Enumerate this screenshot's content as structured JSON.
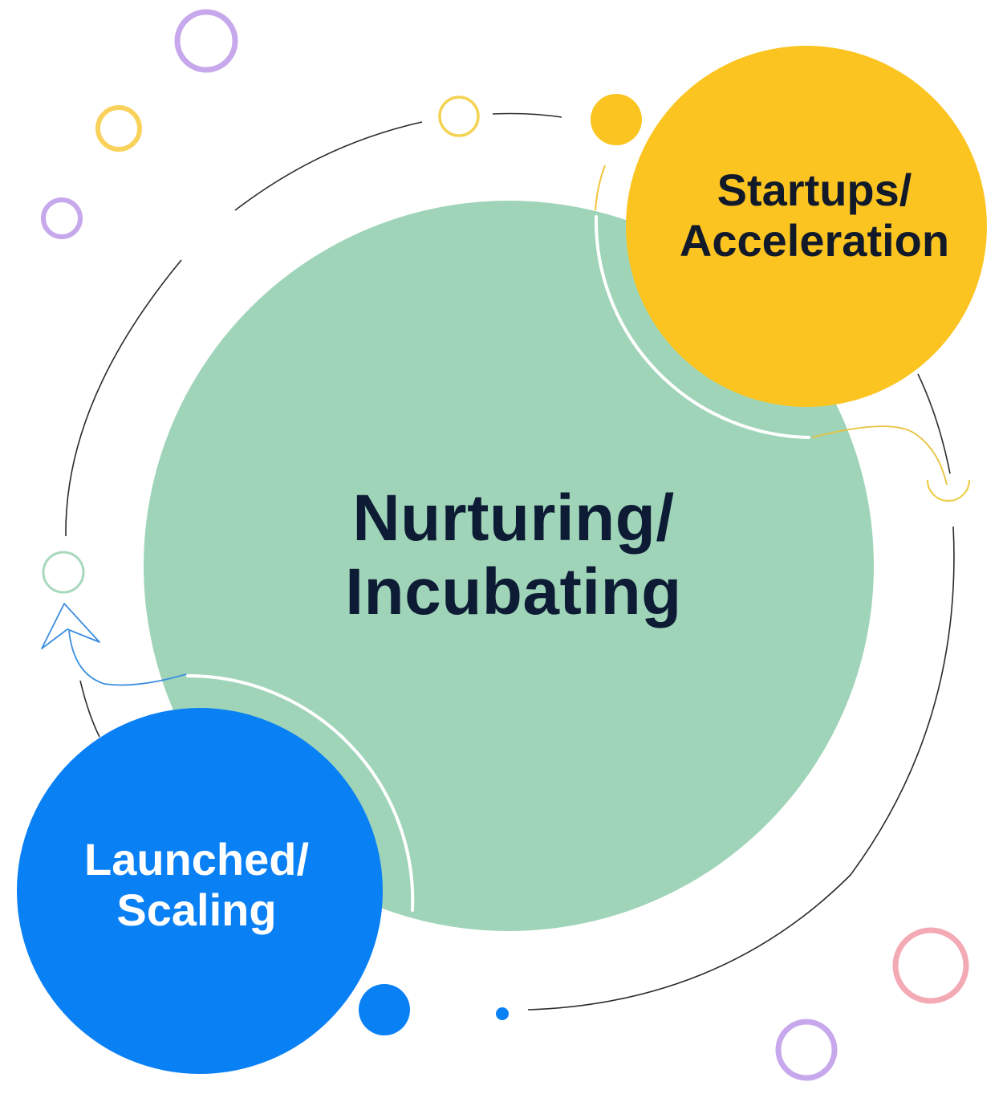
{
  "stages": {
    "center": {
      "line1": "Nurturing/",
      "line2": "Incubating",
      "color": "#9fd4b8"
    },
    "top": {
      "line1": "Startups/",
      "line2": "Acceleration",
      "color": "#fbc421"
    },
    "bottom": {
      "line1": "Launched/",
      "line2": "Scaling",
      "color": "#0a80f5"
    }
  },
  "decor_colors": {
    "purple": "#c7a8ec",
    "yellow": "#f9d25c",
    "pink": "#f4aab4",
    "green": "#a8d8bc",
    "blue": "#3c8ee0",
    "line": "#2a2a2a"
  }
}
